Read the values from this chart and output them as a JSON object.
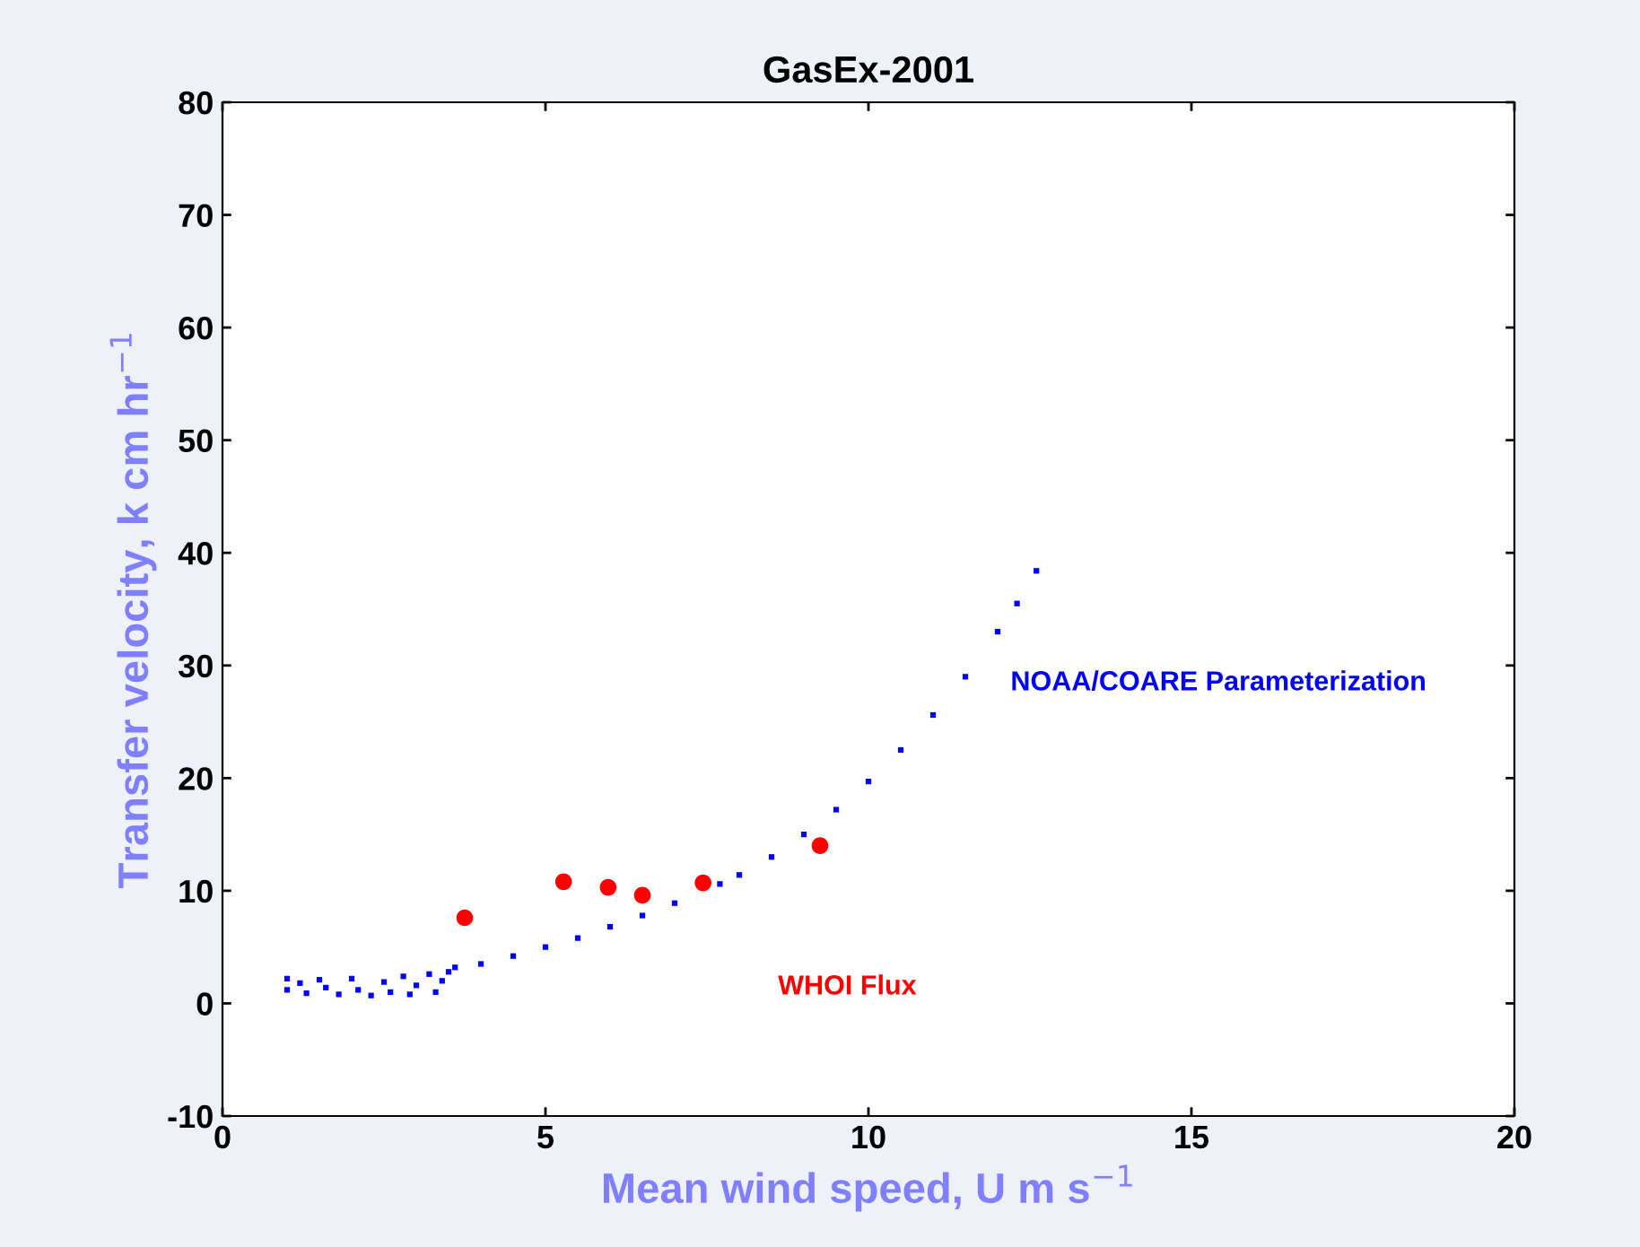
{
  "chart_data": {
    "type": "scatter",
    "title": "GasEx-2001",
    "xlabel": "Mean wind speed, U m s$^{−1}$",
    "ylabel": "Transfer velocity, k cm hr$^{−1}$",
    "xlim": [
      0,
      20
    ],
    "ylim": [
      -10,
      80
    ],
    "xticks": [
      0,
      5,
      10,
      15,
      20
    ],
    "yticks": [
      -10,
      0,
      10,
      20,
      30,
      40,
      50,
      60,
      70,
      80
    ],
    "grid": false,
    "legend": false,
    "series": [
      {
        "name": "NOAA/COARE Parameterization",
        "color": "#0000ff",
        "marker": "square",
        "x": [
          1.0,
          1.0,
          1.2,
          1.3,
          1.5,
          1.6,
          1.8,
          2.0,
          2.1,
          2.3,
          2.5,
          2.6,
          2.8,
          2.9,
          3.0,
          3.2,
          3.3,
          3.4,
          3.5,
          3.6,
          4.0,
          4.5,
          5.0,
          5.5,
          6.0,
          6.5,
          7.0,
          7.7,
          8.0,
          8.5,
          9.0,
          9.5,
          10.0,
          10.5,
          11.0,
          11.5,
          12.0,
          12.3,
          12.6
        ],
        "values": [
          2.2,
          1.2,
          1.8,
          0.9,
          2.1,
          1.4,
          0.8,
          2.2,
          1.2,
          0.7,
          1.9,
          1.0,
          2.4,
          0.8,
          1.6,
          2.6,
          1.0,
          2.0,
          2.8,
          3.2,
          3.5,
          4.2,
          5.0,
          5.8,
          6.8,
          7.8,
          8.9,
          10.6,
          11.4,
          13.0,
          15.0,
          17.2,
          19.7,
          22.5,
          25.6,
          29.0,
          33.0,
          35.5,
          38.4
        ]
      },
      {
        "name": "WHOI Flux",
        "color": "#ff0000",
        "marker": "circle",
        "x": [
          3.75,
          5.28,
          5.97,
          6.5,
          7.44,
          9.25
        ],
        "values": [
          7.6,
          10.8,
          10.3,
          9.6,
          10.7,
          14.0
        ]
      }
    ]
  }
}
